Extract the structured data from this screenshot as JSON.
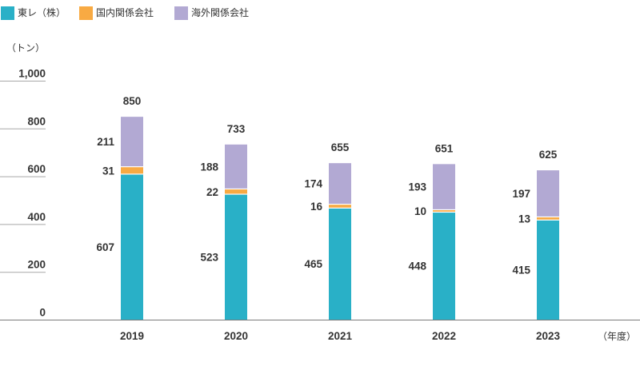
{
  "chart_data": {
    "type": "bar",
    "stacked": true,
    "categories": [
      "2019",
      "2020",
      "2021",
      "2022",
      "2023"
    ],
    "series": [
      {
        "name": "東レ（株）",
        "color": "#29b0c7",
        "values": [
          607,
          523,
          465,
          448,
          415
        ]
      },
      {
        "name": "国内関係会社",
        "color": "#f8aa43",
        "values": [
          31,
          22,
          16,
          10,
          13
        ]
      },
      {
        "name": "海外関係会社",
        "color": "#b2a9d3",
        "values": [
          211,
          188,
          174,
          193,
          197
        ]
      }
    ],
    "totals": [
      850,
      733,
      655,
      651,
      625
    ],
    "ylabel": "（トン）",
    "xlabel": "（年度）",
    "ylim": [
      0,
      1000
    ],
    "yticks": [
      0,
      200,
      400,
      600,
      800,
      1000
    ],
    "ytick_labels": [
      "0",
      "200",
      "400",
      "600",
      "800",
      "1,000"
    ],
    "grid": false,
    "legend_position": "top-left"
  }
}
